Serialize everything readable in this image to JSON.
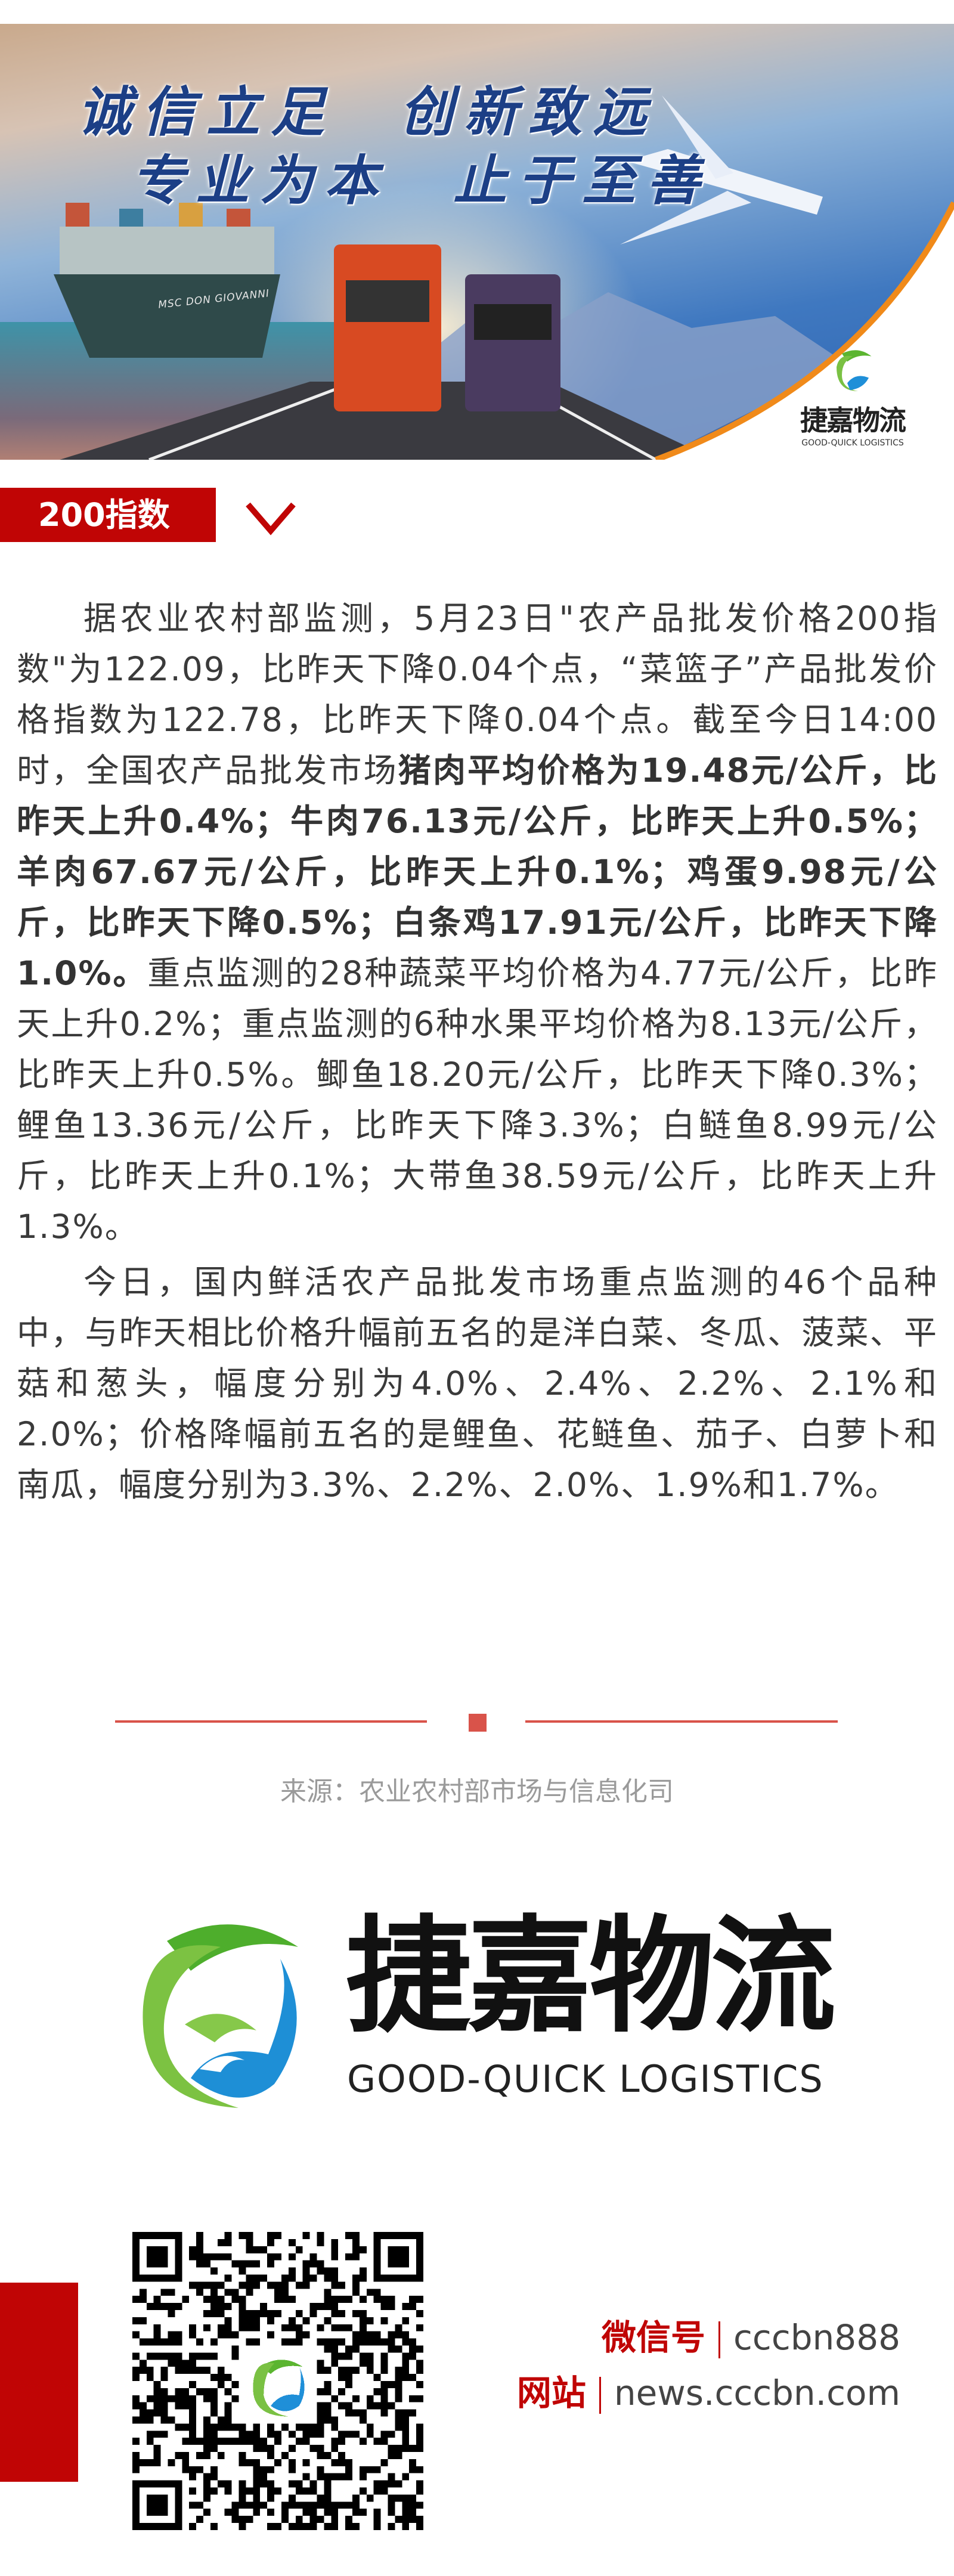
{
  "banner": {
    "slogan_line1": "诚信立足　创新致远",
    "slogan_line2": "专业为本　止于至善",
    "logo_cn": "捷嘉物流",
    "logo_en": "GOOD-QUICK LOGISTICS",
    "ship_name": "MSC DON GIOVANNI"
  },
  "section": {
    "title": "200指数",
    "toggle_icon": "chevron-down-icon"
  },
  "article": {
    "p1": [
      {
        "text": "据农业农村部监测，5月23日\"农产品批发价格200指数\"为122.09，比昨天下降0.04个点，“菜篮子”产品批发价格指数为122.78，比昨天下降0.04个点。截至今日14:00时，全国农产品批发市场",
        "bold": false
      },
      {
        "text": "猪肉平均价格为19.48元/公斤，比昨天上升0.4%；牛肉76.13元/公斤，比昨天上升0.5%；羊肉67.67元/公斤，比昨天上升0.1%；鸡蛋9.98元/公斤，比昨天下降0.5%；白条鸡17.91元/公斤，比昨天下降1.0%。",
        "bold": true
      },
      {
        "text": "重点监测的28种蔬菜平均价格为4.77元/公斤，比昨天上升0.2%；重点监测的6种水果平均价格为8.13元/公斤，比昨天上升0.5%。鲫鱼18.20元/公斤，比昨天下降0.3%；鲤鱼13.36元/公斤，比昨天下降3.3%；白鲢鱼8.99元/公斤，比昨天上升0.1%；大带鱼38.59元/公斤，比昨天上升1.3%。",
        "bold": false
      }
    ],
    "p2": "今日，国内鲜活农产品批发市场重点监测的46个品种中，与昨天相比价格升幅前五名的是洋白菜、冬瓜、菠菜、平菇和葱头，幅度分别为4.0%、2.4%、2.2%、2.1%和2.0%；价格降幅前五名的是鲤鱼、花鲢鱼、茄子、白萝卜和南瓜，幅度分别为3.3%、2.2%、2.0%、1.9%和1.7%。"
  },
  "source": "来源：农业农村部市场与信息化司",
  "footer": {
    "logo_cn": "捷嘉物流",
    "logo_en": "GOOD-QUICK LOGISTICS",
    "wechat_label": "微信号",
    "wechat_value": "cccbn888",
    "website_label": "网站",
    "website_value": "news.cccbn.com"
  },
  "colors": {
    "accent_red": "#c00505",
    "divider": "#d9534a",
    "text": "#3a3a3a",
    "source_gray": "#9a9a9a"
  }
}
